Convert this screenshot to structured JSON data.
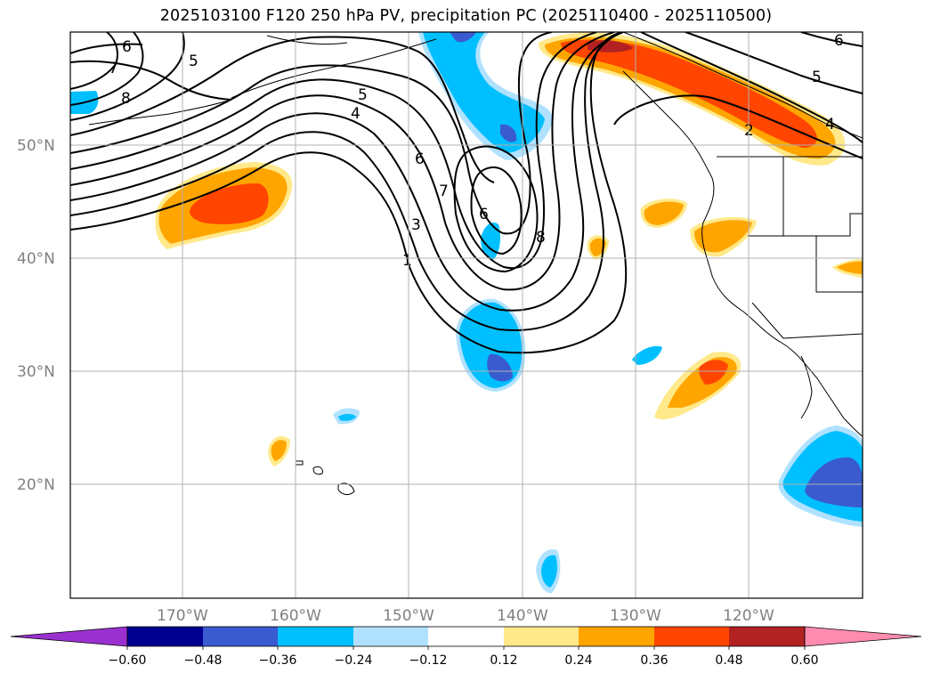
{
  "title": "2025103100 F120 250 hPa PV, precipitation PC (2025110400 - 2025110500)",
  "lat_labels": [
    "50°N",
    "40°N",
    "30°N",
    "20°N"
  ],
  "lon_labels": [
    "170°W",
    "160°W",
    "150°W",
    "140°W",
    "130°W",
    "120°W"
  ],
  "colorbar": {
    "colors": [
      "#9b30d0",
      "#000090",
      "#3a5bd0",
      "#00bfff",
      "#b0e2ff",
      "#ffffff",
      "#ffe98a",
      "#ffa500",
      "#ff4500",
      "#b22222",
      "#ff8caf"
    ],
    "tick_labels": [
      "−0.60",
      "−0.48",
      "−0.36",
      "−0.24",
      "−0.12",
      "0.12",
      "0.24",
      "0.36",
      "0.48",
      "0.60"
    ]
  },
  "contour_labels": [
    "6",
    "7",
    "8",
    "5",
    "5",
    "4",
    "6",
    "7",
    "3",
    "1",
    "6",
    "8",
    "6",
    "5",
    "4",
    "2"
  ],
  "map": {
    "field": "250 hPa PV",
    "shading": "precipitation PC",
    "lon_range": [
      -180,
      -110
    ],
    "lat_range": [
      10,
      60
    ]
  }
}
